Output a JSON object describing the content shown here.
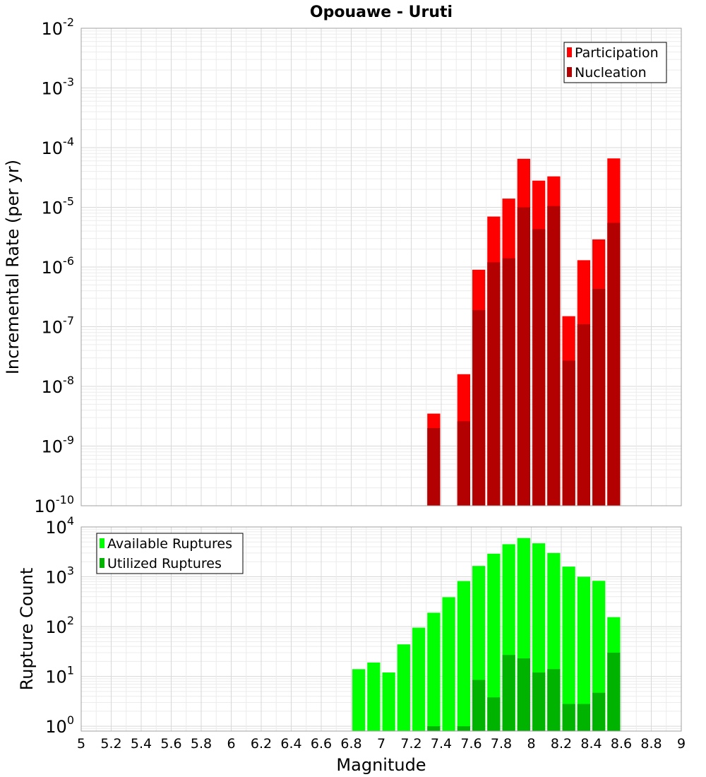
{
  "chart_data": [
    {
      "type": "bar",
      "title": "Opouawe - Uruti",
      "ylabel": "Incremental Rate (per yr)",
      "xlabel": "",
      "yscale": "log",
      "ylim": [
        1e-10,
        0.01
      ],
      "xlim": [
        5,
        9
      ],
      "grid": true,
      "legend_position": "top-right",
      "y_tick_labels": [
        {
          "base": "10",
          "exp": "-10",
          "value": 1e-10
        },
        {
          "base": "10",
          "exp": "-9",
          "value": 1e-09
        },
        {
          "base": "10",
          "exp": "-8",
          "value": 1e-08
        },
        {
          "base": "10",
          "exp": "-7",
          "value": 1e-07
        },
        {
          "base": "10",
          "exp": "-6",
          "value": 1e-06
        },
        {
          "base": "10",
          "exp": "-5",
          "value": 1e-05
        },
        {
          "base": "10",
          "exp": "-4",
          "value": 0.0001
        },
        {
          "base": "10",
          "exp": "-3",
          "value": 0.001
        },
        {
          "base": "10",
          "exp": "-2",
          "value": 0.01
        }
      ],
      "x": [
        7.35,
        7.55,
        7.65,
        7.75,
        7.85,
        7.95,
        8.05,
        8.15,
        8.25,
        8.35,
        8.45,
        8.55
      ],
      "series": [
        {
          "name": "Participation",
          "color": "#ff0000",
          "values": [
            3.5e-09,
            1.6e-08,
            9e-07,
            7e-06,
            1.4e-05,
            6.5e-05,
            2.8e-05,
            3.3e-05,
            1.5e-07,
            1.3e-06,
            2.9e-06,
            6.6e-05
          ]
        },
        {
          "name": "Nucleation",
          "color": "#b30000",
          "values": [
            2e-09,
            2.6e-09,
            1.9e-07,
            1.2e-06,
            1.4e-06,
            1e-05,
            4.3e-06,
            1.05e-05,
            2.7e-08,
            1.1e-07,
            4.3e-07,
            5.5e-06
          ]
        }
      ]
    },
    {
      "type": "bar",
      "title": "",
      "ylabel": "Rupture Count",
      "xlabel": "Magnitude",
      "yscale": "log",
      "ylim": [
        0.8,
        10000
      ],
      "xlim": [
        5,
        9
      ],
      "grid": true,
      "legend_position": "top-left",
      "y_tick_labels": [
        {
          "base": "10",
          "exp": "0",
          "value": 1
        },
        {
          "base": "10",
          "exp": "1",
          "value": 10
        },
        {
          "base": "10",
          "exp": "2",
          "value": 100
        },
        {
          "base": "10",
          "exp": "3",
          "value": 1000
        },
        {
          "base": "10",
          "exp": "4",
          "value": 10000
        }
      ],
      "x_tick_labels": [
        "5",
        "5.2",
        "5.4",
        "5.6",
        "5.8",
        "6",
        "6.2",
        "6.4",
        "6.6",
        "6.8",
        "7",
        "7.2",
        "7.4",
        "7.6",
        "7.8",
        "8",
        "8.2",
        "8.4",
        "8.6",
        "8.8",
        "9"
      ],
      "x": [
        6.85,
        6.95,
        7.05,
        7.15,
        7.25,
        7.35,
        7.45,
        7.55,
        7.65,
        7.75,
        7.85,
        7.95,
        8.05,
        8.15,
        8.25,
        8.35,
        8.45,
        8.55
      ],
      "series": [
        {
          "name": "Available Ruptures",
          "color": "#00ff00",
          "values": [
            14,
            19,
            12,
            44,
            95,
            190,
            390,
            820,
            1650,
            2900,
            4500,
            6000,
            4700,
            3000,
            1600,
            1000,
            830,
            155
          ]
        },
        {
          "name": "Utilized Ruptures",
          "color": "#00b300",
          "values": [
            null,
            null,
            null,
            null,
            null,
            1.0,
            null,
            1.0,
            8.5,
            3.8,
            27,
            23,
            12,
            14,
            2.8,
            2.8,
            4.7,
            30
          ]
        }
      ]
    }
  ]
}
